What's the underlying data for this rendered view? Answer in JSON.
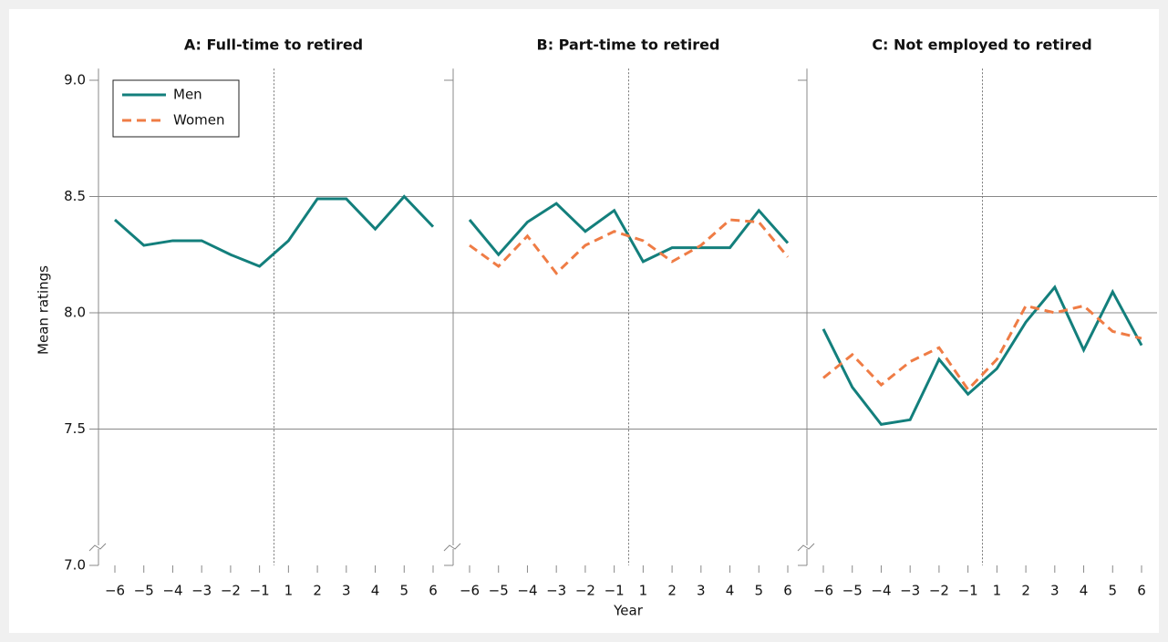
{
  "chart_data": [
    {
      "type": "line",
      "title": "A: Full-time to retired",
      "y_label": "Mean ratings",
      "legend": "upper left",
      "categories": [
        "−6",
        "−5",
        "−4",
        "−3",
        "−2",
        "−1",
        "1",
        "2",
        "3",
        "4",
        "5",
        "6"
      ],
      "series": [
        {
          "name": "Men",
          "color": "#137f7c",
          "values": [
            8.4,
            8.29,
            8.31,
            8.31,
            8.25,
            8.2,
            8.31,
            8.49,
            8.49,
            8.36,
            8.5,
            8.37
          ]
        }
      ],
      "ylim": [
        7,
        9.05
      ],
      "yticks": [
        {
          "value": 7,
          "label": "7.0"
        },
        {
          "value": 7.5,
          "label": "7.5"
        },
        {
          "value": 8,
          "label": "8.0"
        },
        {
          "value": 8.5,
          "label": "8.5"
        },
        {
          "value": 9,
          "label": "9.0"
        }
      ],
      "grid": true
    },
    {
      "type": "line",
      "title": "B: Part-time to retired",
      "x_label": "Year",
      "categories": [
        "−6",
        "−5",
        "−4",
        "−3",
        "−2",
        "−1",
        "1",
        "2",
        "3",
        "4",
        "5",
        "6"
      ],
      "series": [
        {
          "name": "Men",
          "color": "#137f7c",
          "values": [
            8.4,
            8.25,
            8.39,
            8.47,
            8.35,
            8.44,
            8.22,
            8.28,
            8.28,
            8.28,
            8.44,
            8.3
          ]
        },
        {
          "name": "Women",
          "color": "#ef7c45",
          "dashed": true,
          "values": [
            8.29,
            8.2,
            8.33,
            8.17,
            8.29,
            8.35,
            8.31,
            8.22,
            8.29,
            8.4,
            8.39,
            8.24
          ]
        }
      ],
      "ylim": [
        7,
        9.05
      ],
      "yticks": [
        {
          "value": 7,
          "label": "7.0"
        },
        {
          "value": 7.5,
          "label": "7.5"
        },
        {
          "value": 8,
          "label": "8.0"
        },
        {
          "value": 8.5,
          "label": "8.5"
        },
        {
          "value": 9,
          "label": "9.0"
        }
      ],
      "grid": true
    },
    {
      "type": "line",
      "title": "C: Not employed to retired",
      "categories": [
        "−6",
        "−5",
        "−4",
        "−3",
        "−2",
        "−1",
        "1",
        "2",
        "3",
        "4",
        "5",
        "6"
      ],
      "series": [
        {
          "name": "Men",
          "color": "#137f7c",
          "values": [
            7.93,
            7.68,
            7.52,
            7.54,
            7.8,
            7.65,
            7.76,
            7.96,
            8.11,
            7.84,
            8.09,
            7.86
          ]
        },
        {
          "name": "Women",
          "color": "#ef7c45",
          "dashed": true,
          "values": [
            7.72,
            7.82,
            7.69,
            7.79,
            7.85,
            7.67,
            7.8,
            8.03,
            8.0,
            8.03,
            7.92,
            7.89
          ]
        }
      ],
      "ylim": [
        7,
        9.05
      ],
      "yticks": [
        {
          "value": 7,
          "label": "7.0"
        },
        {
          "value": 7.5,
          "label": "7.5"
        },
        {
          "value": 8,
          "label": "8.0"
        },
        {
          "value": 8.5,
          "label": "8.5"
        },
        {
          "value": 9,
          "label": "9.0"
        }
      ],
      "grid": true
    }
  ]
}
